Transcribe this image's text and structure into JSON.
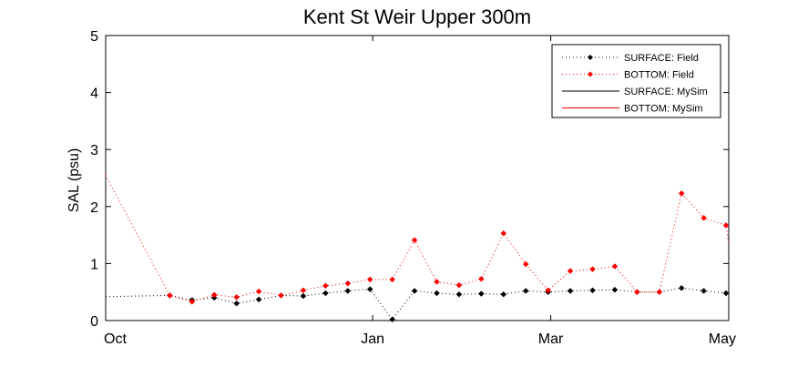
{
  "chart_data": {
    "type": "line",
    "title": "Kent St Weir Upper 300m",
    "xlabel": "",
    "ylabel": "SAL (psu)",
    "x_ticks": [
      "Oct",
      "Jan",
      "Mar",
      "May"
    ],
    "x_tick_months": [
      0,
      3,
      5,
      7
    ],
    "xlim_months": [
      0,
      7
    ],
    "ylim": [
      0,
      5
    ],
    "y_ticks": [
      0,
      1,
      2,
      3,
      4,
      5
    ],
    "grid": false,
    "legend_position": "top-right",
    "series": [
      {
        "name": "SURFACE: Field",
        "style": "dotted-markers",
        "color": "#000000",
        "x_months": [
          0.0,
          0.72,
          0.97,
          1.22,
          1.47,
          1.72,
          1.97,
          2.22,
          2.47,
          2.72,
          2.97,
          3.22,
          3.47,
          3.72,
          3.97,
          4.22,
          4.47,
          4.72,
          4.97,
          5.22,
          5.47,
          5.72,
          5.97,
          6.22,
          6.47,
          6.72,
          6.97,
          7.0
        ],
        "values": [
          0.42,
          0.44,
          0.36,
          0.4,
          0.3,
          0.37,
          0.44,
          0.43,
          0.48,
          0.52,
          0.55,
          0.02,
          0.52,
          0.48,
          0.46,
          0.47,
          0.46,
          0.52,
          0.5,
          0.52,
          0.53,
          0.54,
          0.5,
          0.5,
          0.57,
          0.52,
          0.48,
          0.48
        ]
      },
      {
        "name": "BOTTOM: Field",
        "style": "dotted-markers",
        "color": "#ff0000",
        "x_months": [
          0.0,
          0.72,
          0.97,
          1.22,
          1.47,
          1.72,
          1.97,
          2.22,
          2.47,
          2.72,
          2.97,
          3.22,
          3.47,
          3.72,
          3.97,
          4.22,
          4.47,
          4.72,
          4.97,
          5.22,
          5.47,
          5.72,
          5.97,
          6.22,
          6.47,
          6.72,
          6.97,
          7.0
        ],
        "values": [
          2.55,
          0.44,
          0.33,
          0.45,
          0.41,
          0.51,
          0.44,
          0.53,
          0.61,
          0.65,
          0.72,
          0.72,
          1.41,
          0.68,
          0.62,
          0.73,
          1.53,
          0.99,
          0.53,
          0.87,
          0.9,
          0.95,
          0.5,
          0.5,
          2.23,
          1.8,
          1.67,
          1.35
        ]
      },
      {
        "name": "SURFACE: MySim",
        "style": "solid",
        "color": "#000000",
        "x_months": [],
        "values": []
      },
      {
        "name": "BOTTOM: MySim",
        "style": "solid",
        "color": "#ff0000",
        "x_months": [],
        "values": []
      }
    ]
  }
}
